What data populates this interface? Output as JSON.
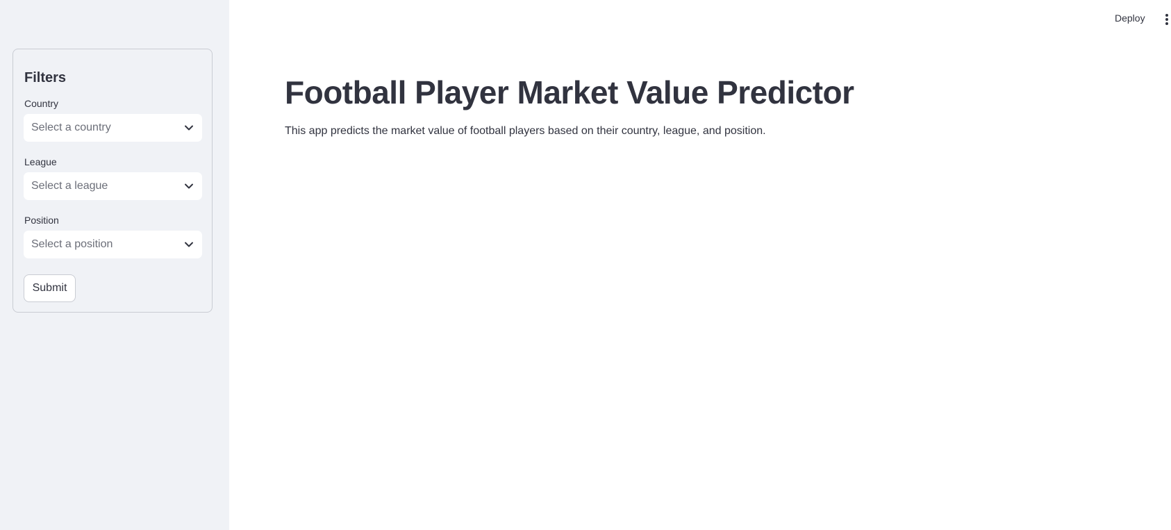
{
  "header": {
    "deploy_label": "Deploy"
  },
  "sidebar": {
    "title": "Filters",
    "fields": [
      {
        "label": "Country",
        "placeholder": "Select a country"
      },
      {
        "label": "League",
        "placeholder": "Select a league"
      },
      {
        "label": "Position",
        "placeholder": "Select a position"
      }
    ],
    "submit_label": "Submit"
  },
  "main": {
    "title": "Football Player Market Value Predictor",
    "description": "This app predicts the market value of football players based on their country, league, and position."
  },
  "icons": {
    "dropdown": "chevron-down-icon",
    "menu": "more-vertical-icon"
  },
  "colors": {
    "sidebar_bg": "#f0f2f6",
    "text": "#31333f",
    "placeholder": "#6b6e78",
    "border": "#c9ccd3"
  }
}
